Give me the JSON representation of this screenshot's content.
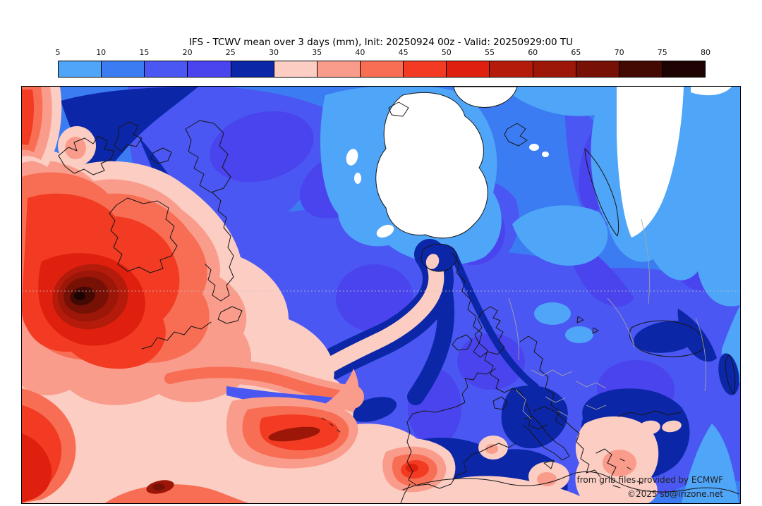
{
  "title": "IFS - TCWV mean over 3 days (mm), Init: 20250924 00z - Valid: 20250929:00 TU",
  "colorbar": {
    "unit": "mm",
    "ticks": [
      "5",
      "10",
      "15",
      "20",
      "25",
      "30",
      "35",
      "40",
      "45",
      "50",
      "55",
      "60",
      "65",
      "70",
      "75",
      "80"
    ],
    "colors": [
      "#4FA5F7",
      "#3C7CF2",
      "#4A57F2",
      "#4A44EE",
      "#0B27A8",
      "#FBCDC3",
      "#FA9C8B",
      "#F86E55",
      "#F23B22",
      "#E0200E",
      "#B41B0B",
      "#9C1708",
      "#771106",
      "#430A04",
      "#1D0402"
    ],
    "below_scale_color": "#FFFFFF"
  },
  "map": {
    "attribution_line1": "from grib files provided by ECMWF",
    "attribution_line2": "©2025 sb@irizone.net"
  },
  "chart_data": {
    "type": "heatmap",
    "title": "IFS - TCWV mean over 3 days (mm), Init: 20250924 00z - Valid: 20250929:00 TU",
    "model": "IFS",
    "variable": "Total column water vapour, mean over 3 days",
    "units": "mm",
    "init": "20250924 00z",
    "valid": "20250929:00 TU",
    "region": "North Atlantic, Greenland, Europe, Mediterranean",
    "colorbar_ticks": [
      5,
      10,
      15,
      20,
      25,
      30,
      35,
      40,
      45,
      50,
      55,
      60,
      65,
      70,
      75,
      80
    ],
    "colorbar_colors": [
      "#4FA5F7",
      "#3C7CF2",
      "#4A57F2",
      "#4A44EE",
      "#0B27A8",
      "#FBCDC3",
      "#FA9C8B",
      "#F86E55",
      "#F23B22",
      "#E0200E",
      "#B41B0B",
      "#9C1708",
      "#771106",
      "#430A04",
      "#1D0402"
    ],
    "features": [
      {
        "name": "subtropical Atlantic moist plume with cyclonic swirl",
        "value_range_mm": "30-80",
        "location": "southwest quadrant of map"
      },
      {
        "name": "darkest moist core of swirl",
        "value_range_mm": "65-80",
        "location": "west-central Atlantic"
      },
      {
        "name": "moist filament arcing from Iceland into the Atlantic plume",
        "value_range_mm": "30-35",
        "location": "central Atlantic, navy 25-30 mm band around it"
      },
      {
        "name": "dry Arctic / Nordic air",
        "value_range_mm": "5-15",
        "location": "Greenland Sea, Barents Sea, Scandinavia"
      },
      {
        "name": "below-scale dry areas (white)",
        "value_range_mm": "<5",
        "location": "Greenland ice sheet, high Arctic, Novaya Zemlya region"
      },
      {
        "name": "moist patch over southwest Iberia",
        "value_range_mm": "30-55",
        "location": "Portugal / SW Spain"
      },
      {
        "name": "moist band with dark core near Madeira/Canaries",
        "value_range_mm": "35-65",
        "location": "subtropical NE Atlantic"
      },
      {
        "name": "moist patches over Mediterranean",
        "value_range_mm": "30-40",
        "location": "Sardinia, Algeria coast, eastern Mediterranean"
      },
      {
        "name": "European background humidity",
        "value_range_mm": "15-25",
        "location": "UK, France, central and eastern Europe"
      },
      {
        "name": "25-30 mm bands",
        "value_range_mm": "25-30",
        "location": "Norway coast, Italy, Aegean, Black Sea, Caspian"
      }
    ]
  }
}
